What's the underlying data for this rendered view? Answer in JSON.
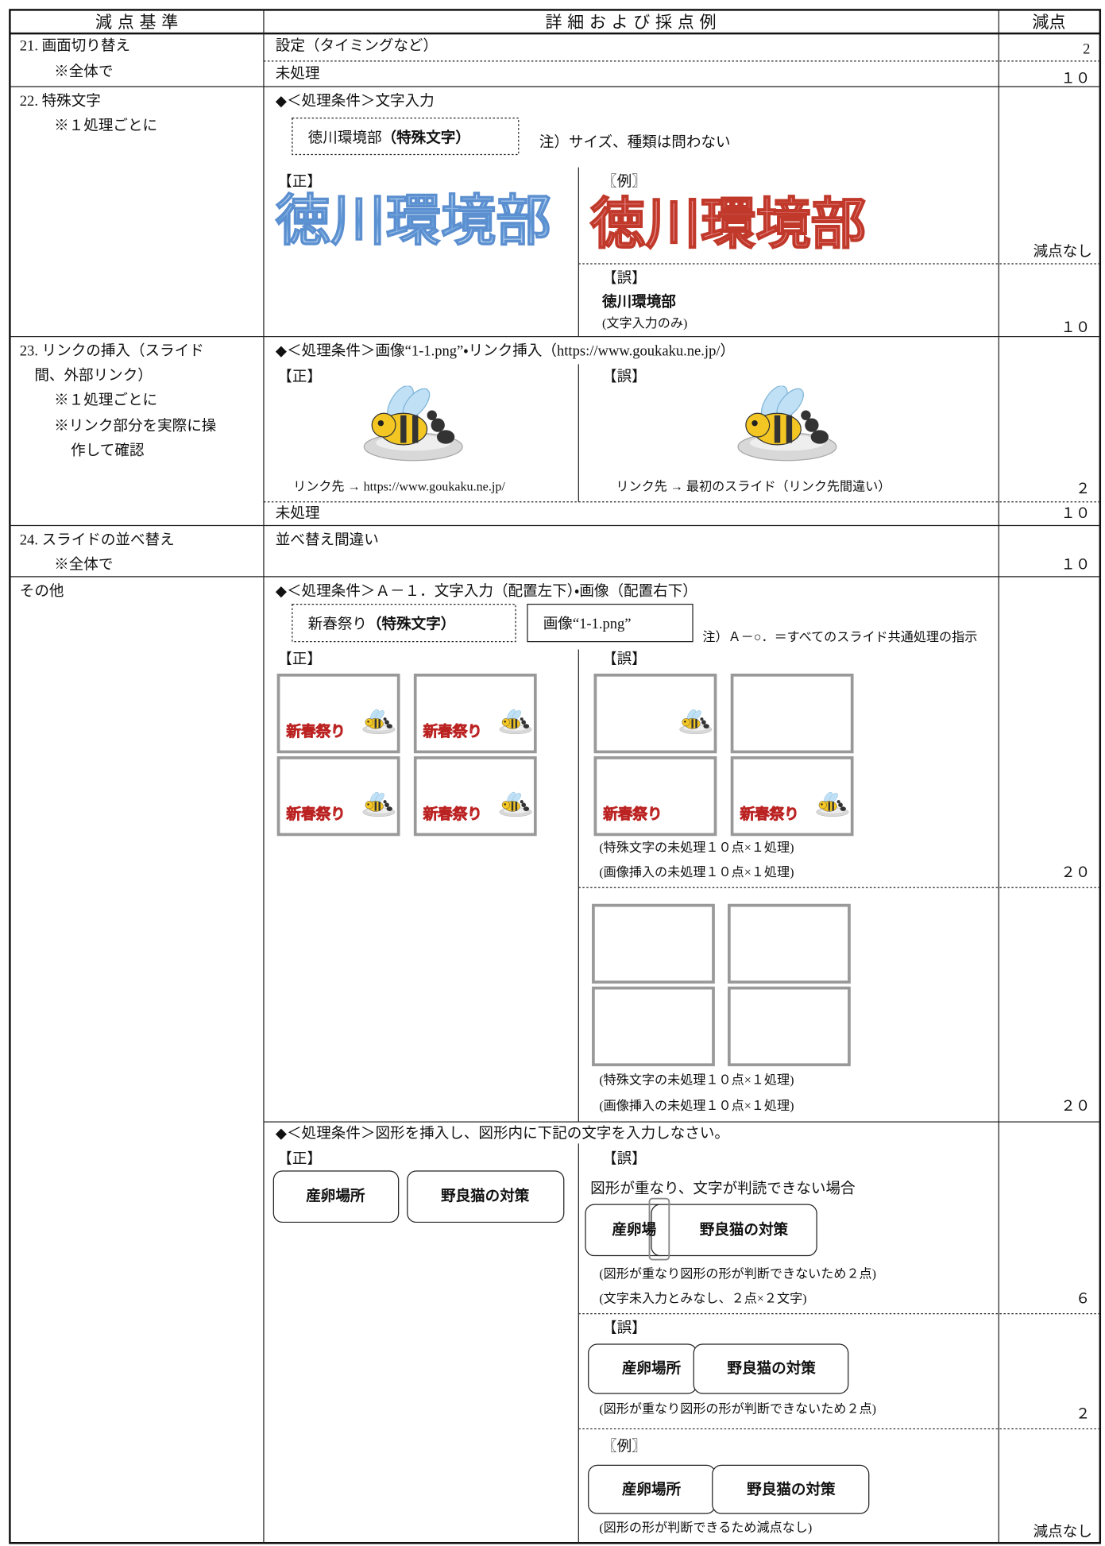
{
  "header": {
    "criteria": "減 点 基 準",
    "details": "詳 細 お よ び 採 点 例",
    "deduction": "減点"
  },
  "r21": {
    "label": "21. 画面切り替え",
    "note": "※全体で",
    "setting": "設定（タイミングなど）",
    "setting_pts": "2",
    "none": "未処理",
    "none_pts": "１０"
  },
  "r22": {
    "label": "22. 特殊文字",
    "note": "※１処理ごとに",
    "condition": "◆＜処理条件＞文字入力",
    "box_text": "徳川環境部",
    "box_bold": "（特殊文字）",
    "box_note": "注）サイズ、種類は問わない",
    "correct": "【正】",
    "correct_art": "徳川環境部",
    "example": "〖例〗",
    "example_art": "徳川環境部",
    "example_pts": "減点なし",
    "wrong": "【誤】",
    "wrong_text": "徳川環境部",
    "wrong_note": "(文字入力のみ)",
    "wrong_pts": "１０"
  },
  "r23": {
    "label": [
      "23. リンクの挿入（スライド",
      "間、外部リンク）",
      "※１処理ごとに",
      "※リンク部分を実際に操",
      "作して確認"
    ],
    "condition": "◆＜処理条件＞画像“1-1.png”・リンク挿入（https://www.goukaku.ne.jp/）",
    "correct": "【正】",
    "wrong": "【誤】",
    "correct_note": "リンク先 → https://www.goukaku.ne.jp/",
    "wrong_note": "リンク先 → 最初のスライド（リンク先間違い）",
    "wrong_pts": "２",
    "none": "未処理",
    "none_pts": "１０"
  },
  "r24": {
    "label": "24. スライドの並べ替え",
    "note": "※全体で",
    "error": "並べ替え間違い",
    "error_pts": "１０"
  },
  "other": {
    "label": "その他",
    "cond1": "◆＜処理条件＞Ａ－１．文字入力（配置左下）・画像（配置右下）",
    "box1_text": "新春祭り",
    "box1_bold": "（特殊文字）",
    "box2": "画像“1-1.png”",
    "box_note": "注）Ａ－○．＝すべてのスライド共通処理の指示",
    "correct": "【正】",
    "wrong": "【誤】",
    "slide_text": "新春祭り",
    "wrong1_notes": [
      "(特殊文字の未処理１０点×１処理)",
      "(画像挿入の未処理１０点×１処理)"
    ],
    "wrong1_pts": "２０",
    "wrong2_notes": [
      "(特殊文字の未処理１０点×１処理)",
      "(画像挿入の未処理１０点×１処理)"
    ],
    "wrong2_pts": "２０",
    "cond2": "◆＜処理条件＞図形を挿入し、図形内に下記の文字を入力しなさい。",
    "correct2": "【正】",
    "wrong2": "【誤】",
    "shape_a": "産卵場所",
    "shape_b": "野良猫の対策",
    "overlap_case": "図形が重なり、文字が判読できない場合",
    "overlap_a": "産卵場",
    "wrong3_notes": [
      "(図形が重なり図形の形が判断できないため２点)",
      "(文字未入力とみなし、２点×２文字)"
    ],
    "wrong3_pts": "６",
    "wrong4": "【誤】",
    "wrong4_note": "(図形が重なり図形の形が判断できないため２点)",
    "wrong4_pts": "２",
    "example": "〖例〗",
    "example_note": "(図形の形が判断できるため減点なし)",
    "example_pts": "減点なし"
  }
}
